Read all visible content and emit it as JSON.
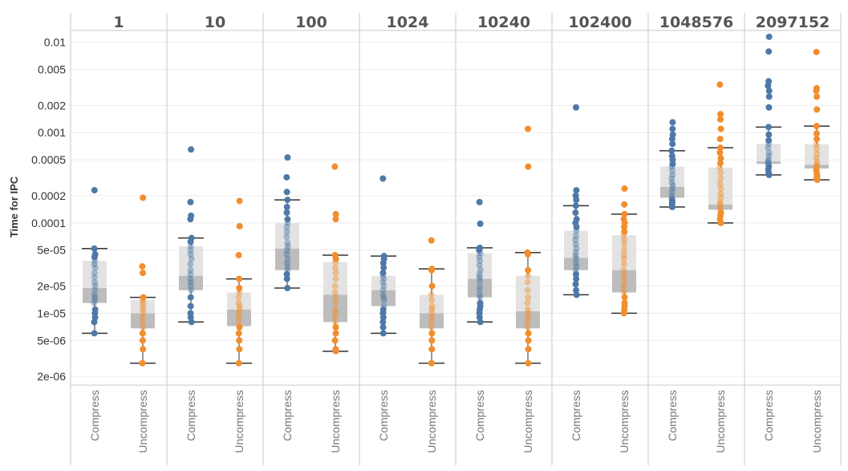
{
  "chart_data": {
    "type": "scatter",
    "subtype": "box-and-whisker with jittered points, faceted",
    "ylabel": "Time for IPC",
    "yscale": "log",
    "ylim": [
      1.6e-06,
      0.0135
    ],
    "yticks": [
      {
        "value": 0.01,
        "label": "0.01"
      },
      {
        "value": 0.005,
        "label": "0.005"
      },
      {
        "value": 0.002,
        "label": "0.002"
      },
      {
        "value": 0.001,
        "label": "0.001"
      },
      {
        "value": 0.0005,
        "label": "0.0005"
      },
      {
        "value": 0.0002,
        "label": "0.0002"
      },
      {
        "value": 0.0001,
        "label": "0.0001"
      },
      {
        "value": 5e-05,
        "label": "5e-05"
      },
      {
        "value": 2e-05,
        "label": "2e-05"
      },
      {
        "value": 1e-05,
        "label": "1e-05"
      },
      {
        "value": 5e-06,
        "label": "5e-06"
      },
      {
        "value": 2e-06,
        "label": "2e-06"
      }
    ],
    "categories": [
      "Compress",
      "Uncompress"
    ],
    "category_colors": {
      "Compress": "#4e79a7",
      "Uncompress": "#f28e2b"
    },
    "box_colors": {
      "upper": "#e3e3e3",
      "lower": "#bdbdbd",
      "whisker": "#333333"
    },
    "grid": true,
    "panes": [
      {
        "label": "1",
        "Compress": {
          "min": 6e-06,
          "q1": 1.3e-05,
          "median": 1.9e-05,
          "q3": 3.8e-05,
          "max": 5.2e-05,
          "points": [
            0.00023,
            5.2e-05,
            4.5e-05,
            4.2e-05,
            3.8e-05,
            3.5e-05,
            3.2e-05,
            2.8e-05,
            2.5e-05,
            2.2e-05,
            2e-05,
            1.8e-05,
            1.6e-05,
            1.5e-05,
            1.4e-05,
            1.3e-05,
            1.1e-05,
            1e-05,
            9e-06,
            8e-06,
            6e-06
          ]
        },
        "Uncompress": {
          "min": 2.8e-06,
          "q1": 6.8e-06,
          "median": 1e-05,
          "q3": 1.4e-05,
          "max": 1.5e-05,
          "points": [
            0.00019,
            3.3e-05,
            2.8e-05,
            1.5e-05,
            1.4e-05,
            1.3e-05,
            1.2e-05,
            1.1e-05,
            1e-05,
            9e-06,
            8e-06,
            7e-06,
            6e-06,
            5e-06,
            4e-06,
            2.8e-06
          ]
        }
      },
      {
        "label": "10",
        "Compress": {
          "min": 8e-06,
          "q1": 1.8e-05,
          "median": 2.6e-05,
          "q3": 5.5e-05,
          "max": 6.8e-05,
          "points": [
            0.00065,
            0.00017,
            0.00012,
            0.00011,
            6.8e-05,
            6.2e-05,
            5.5e-05,
            5e-05,
            4.5e-05,
            4e-05,
            3.5e-05,
            3e-05,
            2.7e-05,
            2.4e-05,
            2.2e-05,
            2e-05,
            1.8e-05,
            1.5e-05,
            1.2e-05,
            1e-05,
            9e-06,
            8e-06
          ]
        },
        "Uncompress": {
          "min": 2.8e-06,
          "q1": 7.2e-06,
          "median": 1.1e-05,
          "q3": 1.7e-05,
          "max": 2.4e-05,
          "points": [
            0.000175,
            9.2e-05,
            4.4e-05,
            2.4e-05,
            1.9e-05,
            1.7e-05,
            1.5e-05,
            1.3e-05,
            1.2e-05,
            1.1e-05,
            1e-05,
            9e-06,
            8e-06,
            7e-06,
            6e-06,
            5e-06,
            4e-06,
            2.8e-06
          ]
        }
      },
      {
        "label": "100",
        "Compress": {
          "min": 1.9e-05,
          "q1": 3e-05,
          "median": 5.2e-05,
          "q3": 0.0001,
          "max": 0.00018,
          "points": [
            0.00053,
            0.00032,
            0.00022,
            0.00018,
            0.00015,
            0.00013,
            0.00011,
            0.0001,
            9e-05,
            8e-05,
            7e-05,
            6e-05,
            5.5e-05,
            5e-05,
            4.5e-05,
            4e-05,
            3.6e-05,
            3.3e-05,
            3e-05,
            2.7e-05,
            2.4e-05,
            1.9e-05
          ]
        },
        "Uncompress": {
          "min": 3.8e-06,
          "q1": 8e-06,
          "median": 1.6e-05,
          "q3": 3.7e-05,
          "max": 4.4e-05,
          "points": [
            0.00042,
            0.000125,
            0.00011,
            4.4e-05,
            4e-05,
            3.7e-05,
            3.2e-05,
            2.8e-05,
            2.4e-05,
            2e-05,
            1.7e-05,
            1.5e-05,
            1.3e-05,
            1.1e-05,
            1e-05,
            9e-06,
            8e-06,
            7e-06,
            6e-06,
            5e-06,
            4e-06,
            3.8e-06
          ]
        }
      },
      {
        "label": "1024",
        "Compress": {
          "min": 6e-06,
          "q1": 1.2e-05,
          "median": 1.8e-05,
          "q3": 2.6e-05,
          "max": 4.3e-05,
          "points": [
            0.00031,
            4.3e-05,
            4e-05,
            3.6e-05,
            3.2e-05,
            2.8e-05,
            2.6e-05,
            2.4e-05,
            2.2e-05,
            2e-05,
            1.8e-05,
            1.6e-05,
            1.5e-05,
            1.4e-05,
            1.2e-05,
            1.1e-05,
            1e-05,
            9e-06,
            8e-06,
            7e-06,
            6e-06
          ]
        },
        "Uncompress": {
          "min": 2.8e-06,
          "q1": 6.8e-06,
          "median": 1e-05,
          "q3": 1.6e-05,
          "max": 3.1e-05,
          "points": [
            6.4e-05,
            3.1e-05,
            3e-05,
            2e-05,
            1.6e-05,
            1.4e-05,
            1.2e-05,
            1.1e-05,
            1e-05,
            9e-06,
            8e-06,
            7e-06,
            6e-06,
            5e-06,
            4e-06,
            2.8e-06
          ]
        }
      },
      {
        "label": "10240",
        "Compress": {
          "min": 8e-06,
          "q1": 1.5e-05,
          "median": 2.4e-05,
          "q3": 4.6e-05,
          "max": 5.3e-05,
          "points": [
            0.00017,
            9.8e-05,
            5.3e-05,
            5e-05,
            4.6e-05,
            4.2e-05,
            3.8e-05,
            3.4e-05,
            3e-05,
            2.7e-05,
            2.5e-05,
            2.3e-05,
            2e-05,
            1.8e-05,
            1.6e-05,
            1.5e-05,
            1.3e-05,
            1.2e-05,
            1.1e-05,
            1e-05,
            9e-06,
            8e-06
          ]
        },
        "Uncompress": {
          "min": 2.8e-06,
          "q1": 6.8e-06,
          "median": 1.05e-05,
          "q3": 2.6e-05,
          "max": 4.7e-05,
          "points": [
            0.0011,
            0.00042,
            4.7e-05,
            4.5e-05,
            3e-05,
            2.6e-05,
            2.2e-05,
            1.8e-05,
            1.5e-05,
            1.3e-05,
            1.1e-05,
            1e-05,
            9e-06,
            8e-06,
            7e-06,
            6e-06,
            5e-06,
            4e-06,
            2.8e-06
          ]
        }
      },
      {
        "label": "102400",
        "Compress": {
          "min": 1.6e-05,
          "q1": 3e-05,
          "median": 4.1e-05,
          "q3": 8.2e-05,
          "max": 0.000155,
          "points": [
            0.0019,
            0.00023,
            0.0002,
            0.00018,
            0.000155,
            0.00013,
            0.00011,
            0.0001,
            9e-05,
            8.2e-05,
            7.2e-05,
            6.5e-05,
            5.8e-05,
            5.2e-05,
            4.7e-05,
            4.3e-05,
            4e-05,
            3.6e-05,
            3.3e-05,
            3e-05,
            2.7e-05,
            2.4e-05,
            2.1e-05,
            1.8e-05,
            1.6e-05
          ]
        },
        "Uncompress": {
          "min": 1e-05,
          "q1": 1.7e-05,
          "median": 3e-05,
          "q3": 7.3e-05,
          "max": 0.000125,
          "points": [
            0.00024,
            0.00016,
            0.000125,
            0.00011,
            0.0001,
            9e-05,
            8e-05,
            7.3e-05,
            6.5e-05,
            5.8e-05,
            5e-05,
            4.4e-05,
            4e-05,
            3.5e-05,
            3e-05,
            2.7e-05,
            2.4e-05,
            2.1e-05,
            1.9e-05,
            1.7e-05,
            1.5e-05,
            1.3e-05,
            1.2e-05,
            1.1e-05,
            1e-05
          ]
        }
      },
      {
        "label": "1048576",
        "Compress": {
          "min": 0.00015,
          "q1": 0.00019,
          "median": 0.00025,
          "q3": 0.00042,
          "max": 0.00063,
          "points": [
            0.0013,
            0.0011,
            0.00095,
            0.00085,
            0.00075,
            0.00063,
            0.00055,
            0.0005,
            0.00045,
            0.00042,
            0.00038,
            0.00034,
            0.00031,
            0.00028,
            0.00026,
            0.00024,
            0.00022,
            0.0002,
            0.00019,
            0.00018,
            0.00017,
            0.00016,
            0.00015
          ]
        },
        "Uncompress": {
          "min": 0.0001,
          "q1": 0.00014,
          "median": 0.00016,
          "q3": 0.00041,
          "max": 0.00068,
          "points": [
            0.0034,
            0.0016,
            0.0014,
            0.0011,
            0.00085,
            0.00068,
            0.0006,
            0.00052,
            0.00046,
            0.00041,
            0.00036,
            0.00031,
            0.00027,
            0.00024,
            0.00021,
            0.00019,
            0.00017,
            0.00016,
            0.00015,
            0.00014,
            0.00013,
            0.00012,
            0.00011,
            0.0001
          ]
        }
      },
      {
        "label": "2097152",
        "Compress": {
          "min": 0.00034,
          "q1": 0.00045,
          "median": 0.00048,
          "q3": 0.00075,
          "max": 0.00115,
          "points": [
            0.0115,
            0.0079,
            0.0037,
            0.0033,
            0.0029,
            0.0025,
            0.0019,
            0.00115,
            0.00095,
            0.00082,
            0.00075,
            0.00068,
            0.0006,
            0.00055,
            0.0005,
            0.00048,
            0.00046,
            0.00045,
            0.00042,
            0.00039,
            0.00036,
            0.00034
          ]
        },
        "Uncompress": {
          "min": 0.0003,
          "q1": 0.0004,
          "median": 0.00044,
          "q3": 0.00074,
          "max": 0.00118,
          "points": [
            0.0078,
            0.0031,
            0.0029,
            0.0025,
            0.0018,
            0.00118,
            0.00098,
            0.00085,
            0.00074,
            0.00066,
            0.00058,
            0.00052,
            0.00047,
            0.00044,
            0.00042,
            0.0004,
            0.00038,
            0.00035,
            0.00033,
            0.00031,
            0.0003
          ]
        }
      }
    ]
  }
}
